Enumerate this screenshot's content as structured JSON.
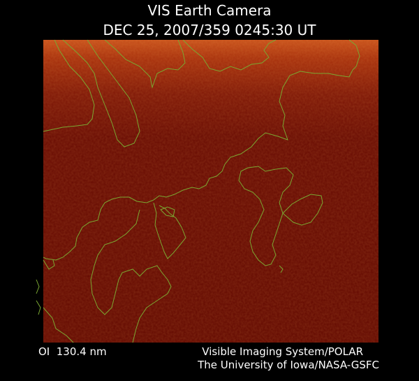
{
  "header": {
    "title": "VIS Earth Camera",
    "timestamp": "DEC 25, 2007/359 0245:30 UT"
  },
  "footer": {
    "filter": "OI  130.4 nm",
    "instrument": "Visible Imaging System/POLAR",
    "credit": "The University of Iowa/NASA-GSFC"
  }
}
